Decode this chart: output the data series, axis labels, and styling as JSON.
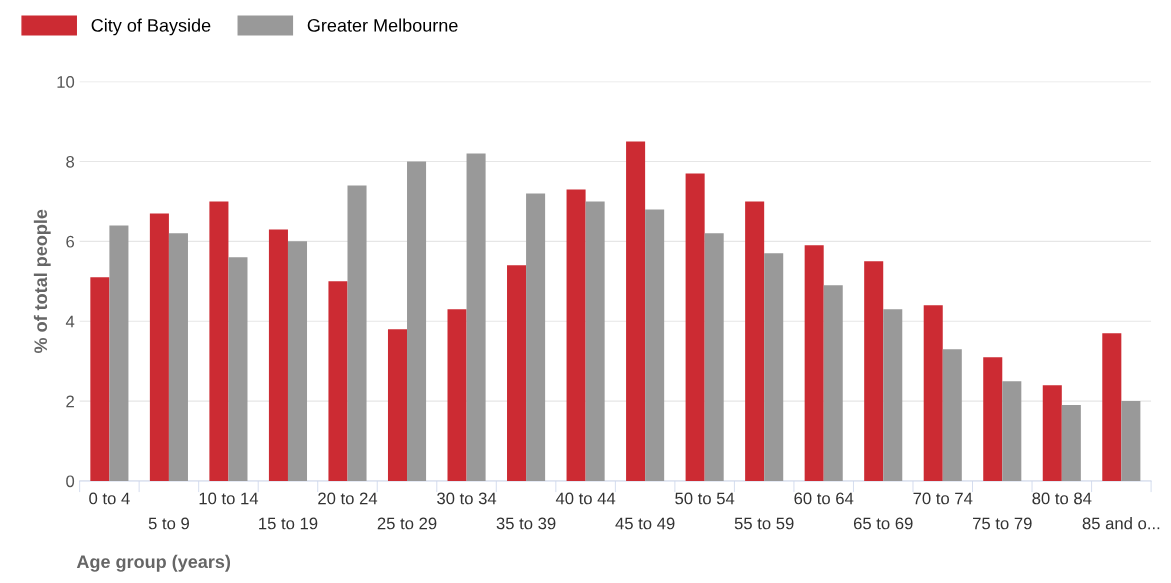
{
  "chart_data": {
    "type": "bar",
    "xlabel": "Age group (years)",
    "ylabel": "% of total people",
    "categories": [
      "0 to 4",
      "5 to 9",
      "10 to 14",
      "15 to 19",
      "20 to 24",
      "25 to 29",
      "30 to 34",
      "35 to 39",
      "40 to 44",
      "45 to 49",
      "50 to 54",
      "55 to 59",
      "60 to 64",
      "65 to 69",
      "70 to 74",
      "75 to 79",
      "80 to 84",
      "85 and o..."
    ],
    "series": [
      {
        "name": "City of Bayside",
        "color": "#cc2b33",
        "values": [
          5.1,
          6.7,
          7.0,
          6.3,
          5.0,
          3.8,
          4.3,
          5.4,
          7.3,
          8.5,
          7.7,
          7.0,
          5.9,
          5.5,
          4.4,
          3.1,
          2.4,
          3.7
        ]
      },
      {
        "name": "Greater Melbourne",
        "color": "#999999",
        "values": [
          6.4,
          6.2,
          5.6,
          6.0,
          7.4,
          8.0,
          8.2,
          7.2,
          7.0,
          6.8,
          6.2,
          5.7,
          4.9,
          4.3,
          3.3,
          2.5,
          1.9,
          2.0
        ]
      }
    ],
    "ylim": [
      0,
      10
    ],
    "yticks": [
      0,
      2,
      4,
      6,
      8,
      10
    ],
    "grid": "y",
    "legend": "top left"
  }
}
